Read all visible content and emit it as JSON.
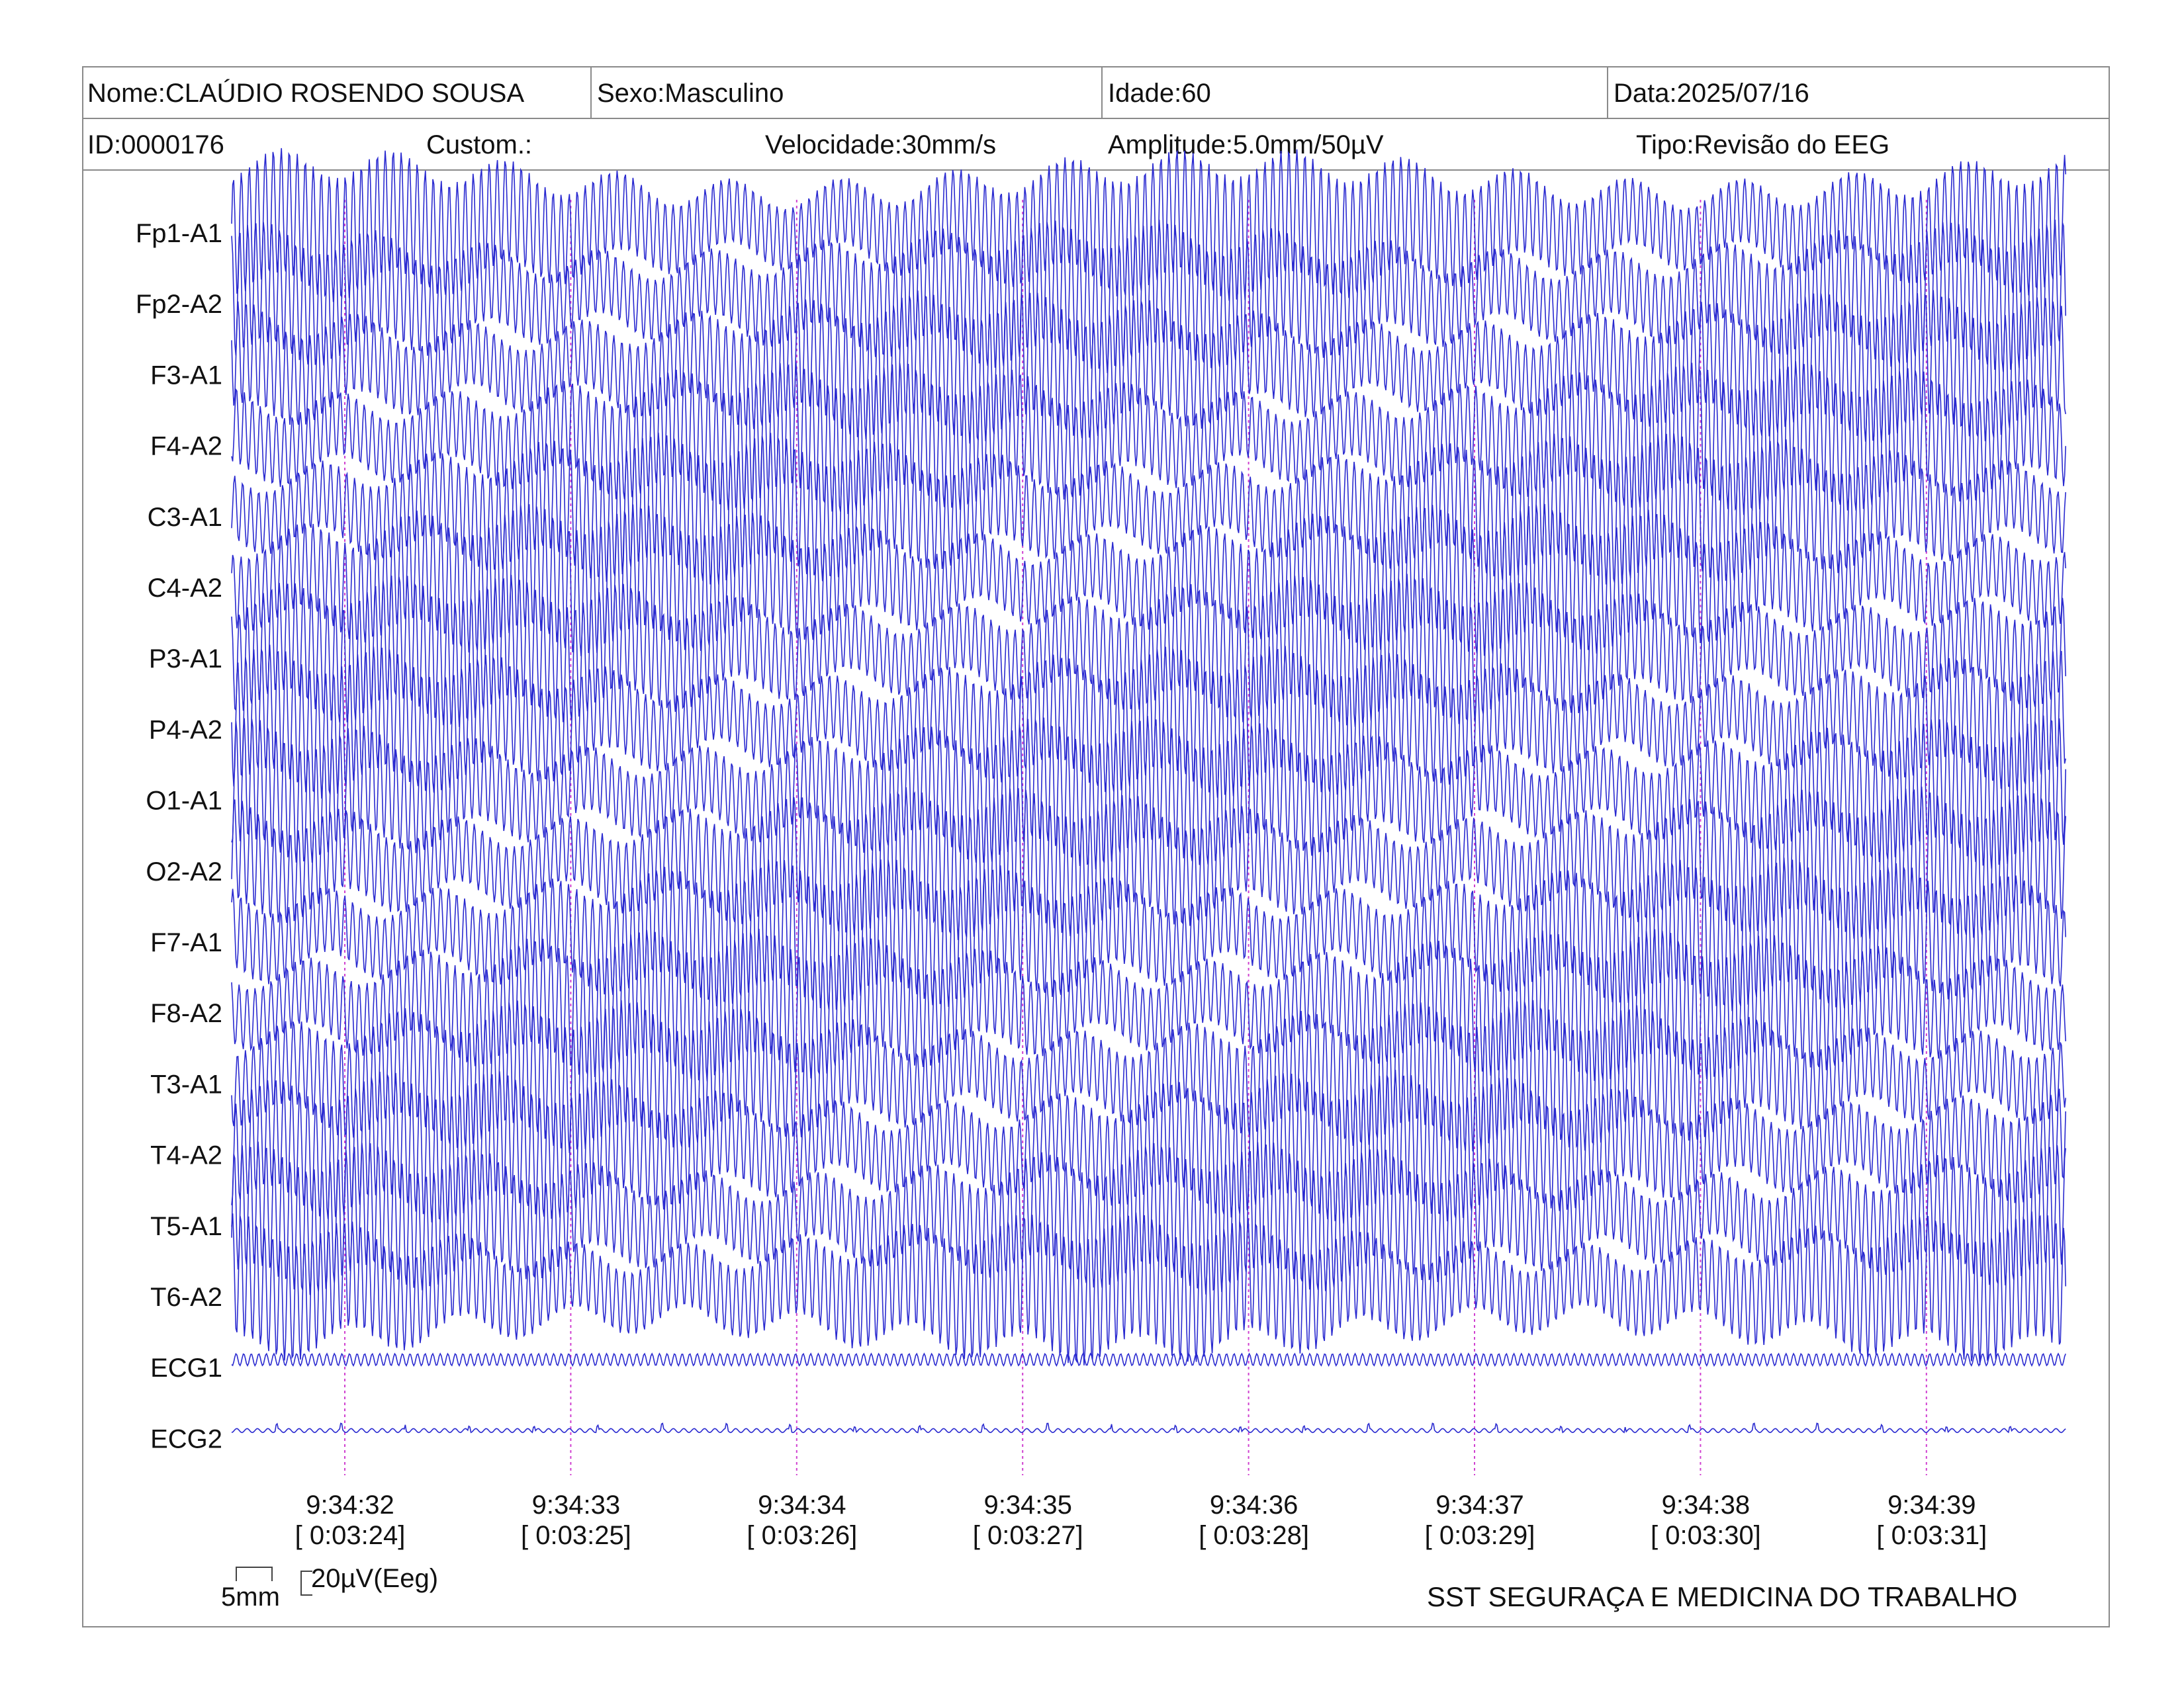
{
  "header": {
    "nome": "Nome:CLAÚDIO ROSENDO SOUSA",
    "sexo": "Sexo:Masculino",
    "idade": "Idade:60",
    "data": "Data:2025/07/16",
    "id": "ID:0000176",
    "custom": "Custom.:",
    "velocidade": "Velocidade:30mm/s",
    "amplitude": "Amplitude:5.0mm/50µV",
    "tipo": "Tipo:Revisão do EEG"
  },
  "chart_data": {
    "type": "line",
    "channels": [
      "Fp1-A1",
      "Fp2-A2",
      "F3-A1",
      "F4-A2",
      "C3-A1",
      "C4-A2",
      "P3-A1",
      "P4-A2",
      "O1-A1",
      "O2-A2",
      "F7-A1",
      "F8-A2",
      "T3-A1",
      "T4-A2",
      "T5-A1",
      "T6-A2",
      "ECG1",
      "ECG2"
    ],
    "time_ticks": [
      {
        "clock": "9:34:32",
        "elapsed": "[ 0:03:24]"
      },
      {
        "clock": "9:34:33",
        "elapsed": "[ 0:03:25]"
      },
      {
        "clock": "9:34:34",
        "elapsed": "[ 0:03:26]"
      },
      {
        "clock": "9:34:35",
        "elapsed": "[ 0:03:27]"
      },
      {
        "clock": "9:34:36",
        "elapsed": "[ 0:03:28]"
      },
      {
        "clock": "9:34:37",
        "elapsed": "[ 0:03:29]"
      },
      {
        "clock": "9:34:38",
        "elapsed": "[ 0:03:30]"
      },
      {
        "clock": "9:34:39",
        "elapsed": "[ 0:03:31]"
      }
    ],
    "trace_color": "#2a2ad0",
    "marker_color": "#d040d0"
  },
  "calibration": {
    "time_scale": "5mm",
    "amp_scale": "20µV(Eeg)"
  },
  "footer": {
    "company": "SST SEGURAÇA E MEDICINA DO TRABALHO"
  }
}
